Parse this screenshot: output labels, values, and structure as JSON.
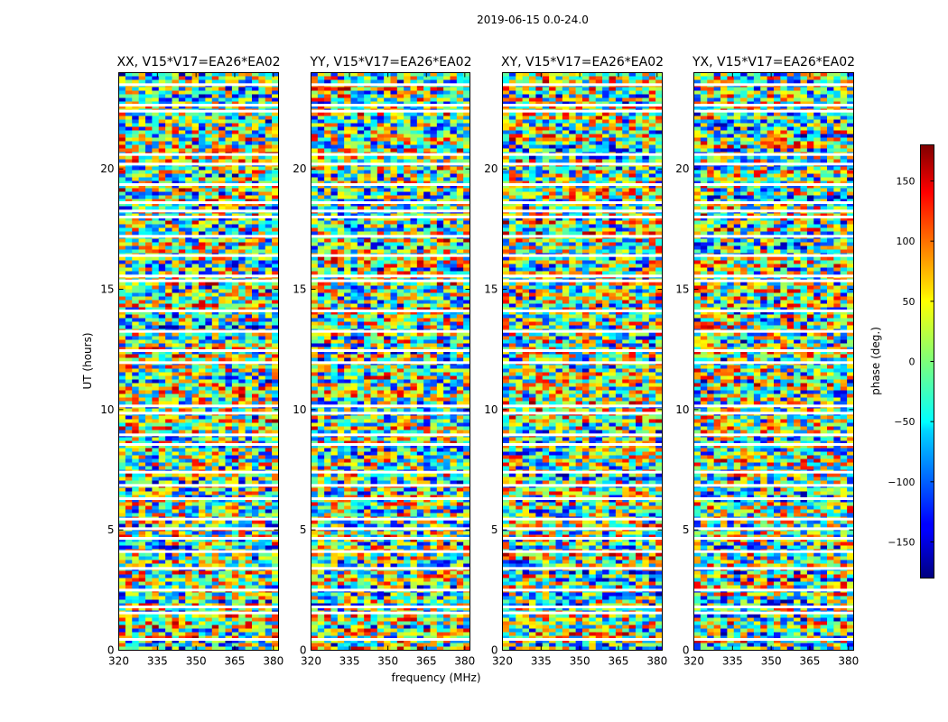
{
  "chart_data": {
    "type": "heatmap",
    "title": "2019-06-15 0.0-24.0",
    "xlabel": "frequency (MHz)",
    "ylabel": "UT (hours)",
    "xlim": [
      320,
      382
    ],
    "ylim": [
      0,
      24
    ],
    "x_ticks": [
      320,
      335,
      350,
      365,
      380
    ],
    "y_ticks": [
      0,
      5,
      10,
      15,
      20
    ],
    "panels": [
      {
        "title": "XX, V15*V17=EA26*EA02",
        "pol": "XX"
      },
      {
        "title": "YY, V15*V17=EA26*EA02",
        "pol": "YY"
      },
      {
        "title": "XY, V15*V17=EA26*EA02",
        "pol": "XY"
      },
      {
        "title": "YX, V15*V17=EA26*EA02",
        "pol": "YX"
      }
    ],
    "flagged_ut_hours": [
      0.45,
      1.55,
      1.8,
      2.5,
      3.4,
      4.1,
      4.65,
      5.05,
      5.45,
      6.3,
      6.85,
      7.4,
      8.55,
      8.95,
      9.85,
      10.15,
      11.95,
      12.45,
      13.25,
      14.1,
      15.35,
      15.55,
      16.4,
      17.2,
      18.0,
      18.25,
      18.6,
      19.35,
      20.2,
      20.6,
      22.4,
      22.65,
      23.5
    ],
    "colorbar": {
      "label": "phase (deg.)",
      "min": -180,
      "max": 180,
      "ticks": [
        150,
        100,
        50,
        0,
        -50,
        -100,
        -150
      ],
      "tick_labels": [
        "150",
        "100",
        "50",
        "0",
        "−50",
        "−100",
        "−150"
      ],
      "colormap": "jet"
    }
  }
}
